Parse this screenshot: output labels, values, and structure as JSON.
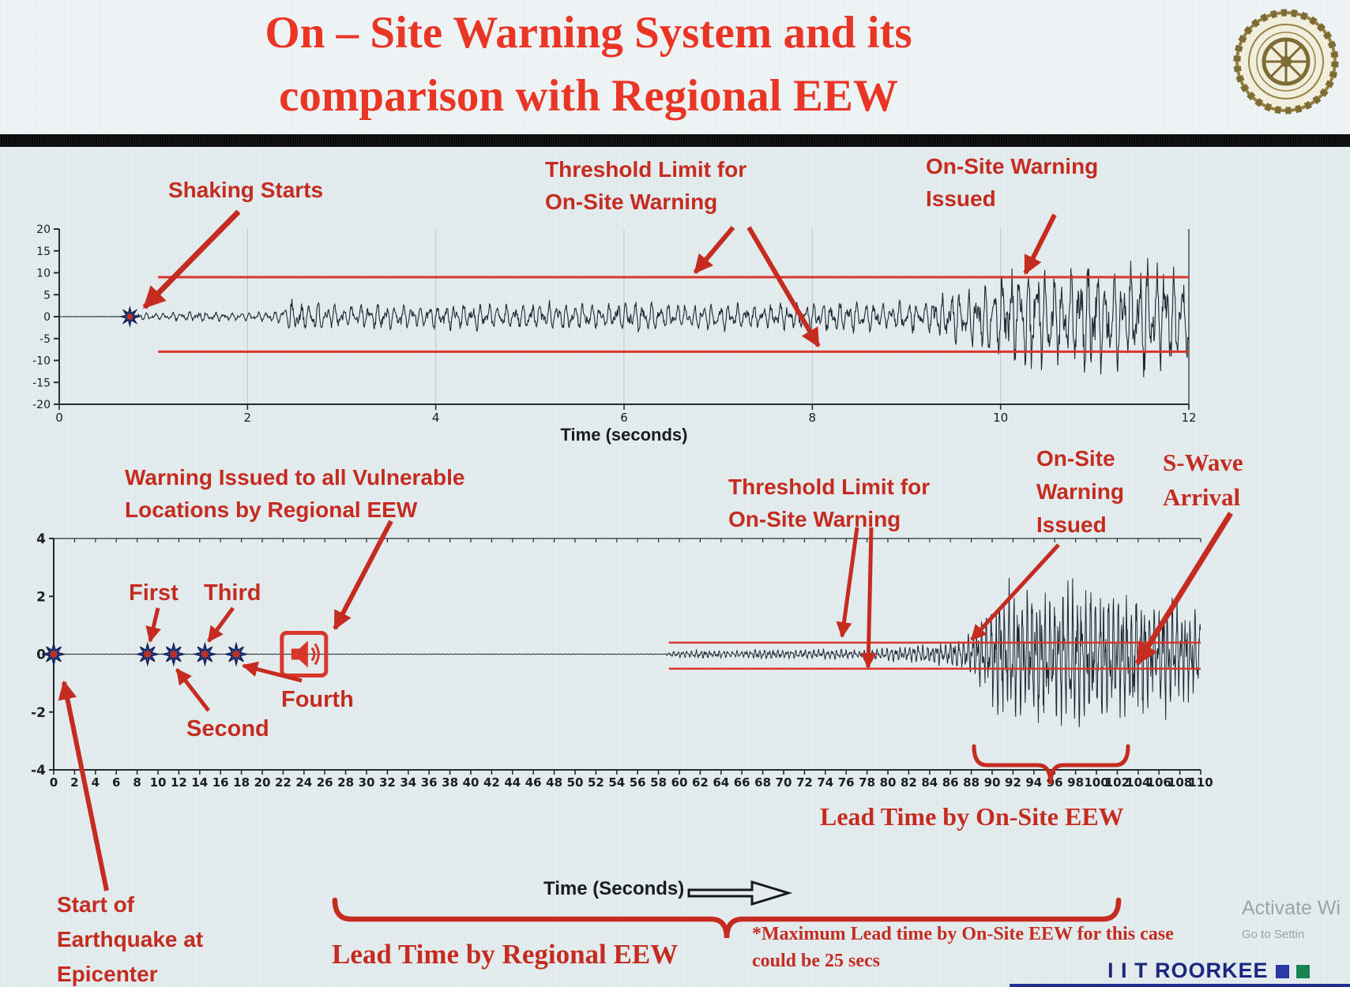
{
  "header": {
    "title_line1": "On – Site Warning System and its",
    "title_line2": "comparison with Regional EEW"
  },
  "colors": {
    "accent": "#c8271b",
    "title": "#ee3120",
    "trace": "#1c2531",
    "threshold": "#dd3226",
    "star": "#24418f",
    "brand": "#17227d",
    "axis": "#23292e",
    "watermark": "#8f999b"
  },
  "chart_data": [
    {
      "id": "onsite-record",
      "type": "line",
      "title": "",
      "xlabel": "Time (seconds)",
      "ylabel": "",
      "xlim": [
        0,
        12
      ],
      "xticks": [
        0,
        2,
        4,
        6,
        8,
        10,
        12
      ],
      "ylim": [
        -20,
        20
      ],
      "yticks": [
        20,
        15,
        10,
        5,
        0,
        -5,
        -10,
        -15,
        -20
      ],
      "grid": false,
      "threshold_upper": 9,
      "threshold_lower": -8,
      "threshold_x_start": 1.05,
      "shaking_start_t": 0.75,
      "onsite_warning_issued_t": 10.2,
      "events": [
        {
          "name": "shaking-start",
          "t": 0.75
        }
      ],
      "envelope": [
        [
          0,
          0.03
        ],
        [
          0.72,
          0.05
        ],
        [
          0.8,
          1.0
        ],
        [
          1.1,
          0.7
        ],
        [
          1.4,
          1.1
        ],
        [
          1.8,
          0.8
        ],
        [
          2.3,
          1.0
        ],
        [
          2.45,
          3.4
        ],
        [
          2.75,
          2.8
        ],
        [
          3.1,
          2.3
        ],
        [
          3.5,
          2.8
        ],
        [
          3.9,
          2.1
        ],
        [
          4.3,
          2.9
        ],
        [
          4.8,
          2.4
        ],
        [
          5.2,
          3.0
        ],
        [
          5.7,
          2.5
        ],
        [
          6.1,
          3.1
        ],
        [
          6.5,
          2.6
        ],
        [
          7.0,
          2.9
        ],
        [
          7.4,
          2.4
        ],
        [
          7.9,
          2.8
        ],
        [
          8.4,
          3.1
        ],
        [
          8.8,
          2.7
        ],
        [
          9.2,
          3.6
        ],
        [
          9.5,
          5.0
        ],
        [
          9.8,
          7.0
        ],
        [
          10.1,
          9.5
        ],
        [
          10.4,
          12.0
        ],
        [
          10.7,
          9.5
        ],
        [
          11.0,
          12.5
        ],
        [
          11.3,
          10.0
        ],
        [
          11.6,
          13.0
        ],
        [
          12,
          10.0
        ]
      ],
      "osc": {
        "f1": 11.0,
        "f2": 17.5,
        "noise": 0.35,
        "dt": 0.006,
        "seed": 7
      },
      "annotations": {
        "shaking_starts": "Shaking Starts",
        "threshold_line1": "Threshold Limit for",
        "threshold_line2": "On-Site Warning",
        "warning_line1": "On-Site Warning",
        "warning_line2": "Issued"
      }
    },
    {
      "id": "regional-comparison",
      "type": "line",
      "title": "",
      "xlabel": "Time (Seconds)",
      "ylabel": "",
      "xlim": [
        0,
        110
      ],
      "xticks": [
        0,
        2,
        4,
        6,
        8,
        10,
        12,
        14,
        16,
        18,
        20,
        22,
        24,
        26,
        28,
        30,
        32,
        34,
        36,
        38,
        40,
        42,
        44,
        46,
        48,
        50,
        52,
        54,
        56,
        58,
        60,
        62,
        64,
        66,
        68,
        70,
        72,
        74,
        76,
        78,
        80,
        82,
        84,
        86,
        88,
        90,
        92,
        94,
        96,
        98,
        100,
        102,
        104,
        106,
        108,
        110
      ],
      "ylim": [
        -4,
        4
      ],
      "yticks": [
        4,
        2,
        0,
        -2,
        -4
      ],
      "grid": false,
      "threshold_upper": 0.4,
      "threshold_lower": -0.5,
      "threshold_x_start": 59,
      "regional_warning_icon_t": 24,
      "onsite_warning_issued_t": 80,
      "swave_arrival_t": 93,
      "lead_time_regional_span_s": [
        24,
        93
      ],
      "lead_time_onsite_span_s": [
        80,
        93
      ],
      "max_lead_time_onsite_s": 25,
      "events": [
        {
          "name": "epicenter",
          "t": 0
        },
        {
          "name": "first",
          "t": 9
        },
        {
          "name": "second",
          "t": 11.5
        },
        {
          "name": "third",
          "t": 14.5
        },
        {
          "name": "fourth",
          "t": 17.5
        }
      ],
      "envelope": [
        [
          0,
          0.006
        ],
        [
          58.5,
          0.01
        ],
        [
          59.5,
          0.09
        ],
        [
          62,
          0.13
        ],
        [
          65,
          0.1
        ],
        [
          68,
          0.15
        ],
        [
          71,
          0.12
        ],
        [
          74,
          0.16
        ],
        [
          77,
          0.13
        ],
        [
          79,
          0.17
        ],
        [
          81,
          0.22
        ],
        [
          83,
          0.27
        ],
        [
          85,
          0.33
        ],
        [
          87,
          0.45
        ],
        [
          88.5,
          0.8
        ],
        [
          90,
          1.5
        ],
        [
          91.5,
          2.1
        ],
        [
          93,
          1.7
        ],
        [
          94.5,
          2.2
        ],
        [
          96,
          1.8
        ],
        [
          97.5,
          2.2
        ],
        [
          99,
          1.9
        ],
        [
          100.5,
          2.1
        ],
        [
          102,
          1.7
        ],
        [
          103.5,
          2.0
        ],
        [
          105,
          1.6
        ],
        [
          106.5,
          1.8
        ],
        [
          108,
          1.5
        ],
        [
          110,
          1.6
        ]
      ],
      "osc": {
        "f1": 2.3,
        "f2": 4.1,
        "noise": 0.35,
        "dt": 0.035,
        "seed": 11
      },
      "annotations": {
        "regional_line1": "Warning Issued to all Vulnerable",
        "regional_line2": "Locations by Regional EEW",
        "threshold_line1": "Threshold Limit for",
        "threshold_line2": "On-Site Warning",
        "onsite_line1": "On-Site",
        "onsite_line2": "Warning",
        "onsite_line3": "Issued",
        "swave_line1": "S-Wave",
        "swave_line2": "Arrival",
        "event_first": "First",
        "event_second": "Second",
        "event_third": "Third",
        "event_fourth": "Fourth",
        "epicenter_line1": "Start of",
        "epicenter_line2": "Earthquake at",
        "epicenter_line3": "Epicenter",
        "lead_onsite": "Lead Time by On-Site EEW",
        "lead_regional": "Lead Time by Regional EEW",
        "footnote_line1": "*Maximum Lead time by On-Site EEW for this case",
        "footnote_line2": "could be 25 secs"
      }
    }
  ],
  "footer": {
    "brand": "I I T ROORKEE",
    "watermark_line1": "Activate Wi",
    "watermark_line2": "Go to Settin"
  }
}
